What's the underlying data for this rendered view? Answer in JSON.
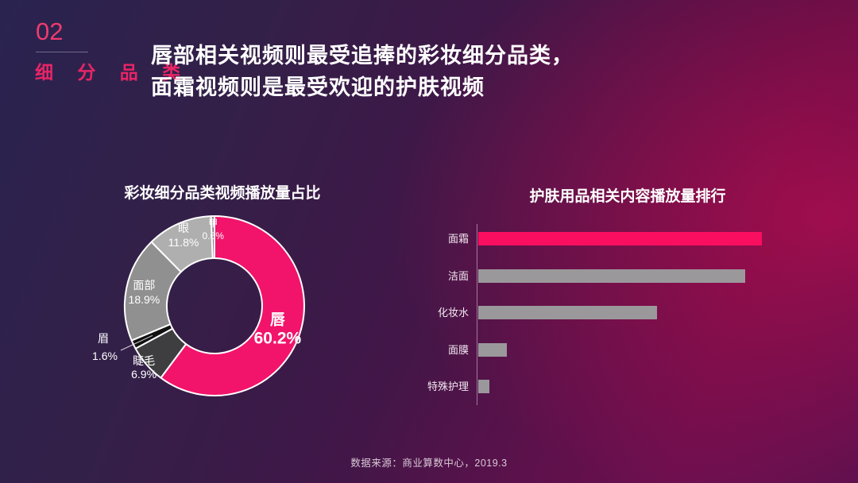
{
  "slide": {
    "section_number": "02",
    "section_label": "细 分 品 类",
    "title_line1": "唇部相关视频则最受追捧的彩妆细分品类，",
    "title_line2": "面霜视频则是最受欢迎的护肤视频",
    "footer": "数据来源：商业算数中心，2019.3"
  },
  "colors": {
    "accent_pink": "#F2136B",
    "bar_gray": "#9B989B",
    "background_indigo": "#2A2350",
    "background_crimson": "#5D0E44",
    "text_white": "#FFFFFF",
    "section_pink": "#E82566"
  },
  "chart_data": [
    {
      "type": "pie",
      "donut": true,
      "title": "彩妆细分品类视频播放量占比",
      "start_angle_deg": 0,
      "direction": "clockwise",
      "unit": "%",
      "slices": [
        {
          "label": "唇",
          "value": 60.2,
          "display": "60.2%",
          "color": "#F2136B"
        },
        {
          "label": "睫毛",
          "value": 6.9,
          "display": "6.9%",
          "color": "#3E3E40"
        },
        {
          "label": "眉",
          "value": 1.6,
          "display": "1.6%",
          "color": "#111111"
        },
        {
          "label": "面部",
          "value": 18.9,
          "display": "18.9%",
          "color": "#909090"
        },
        {
          "label": "眼",
          "value": 11.8,
          "display": "11.8%",
          "color": "#AFAFAF"
        },
        {
          "label": "甲",
          "value": 0.6,
          "display": "0.6%",
          "color": "#7E7E7E"
        }
      ]
    },
    {
      "type": "bar",
      "orientation": "horizontal",
      "title": "护肤用品相关内容播放量排行",
      "categories": [
        "面霜",
        "洁面",
        "化妆水",
        "面膜",
        "特殊护理"
      ],
      "values": [
        100,
        94,
        63,
        10,
        4
      ],
      "value_scale": "percent of longest bar (estimated from pixels; no numeric labels shown)",
      "highlight_index": 0,
      "highlight_color": "#F90E60",
      "bar_color": "#9B989B",
      "legend": "none",
      "grid": false
    }
  ]
}
